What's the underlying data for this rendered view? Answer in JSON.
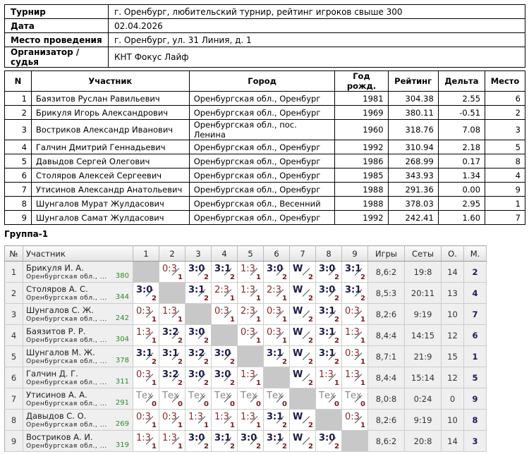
{
  "info": [
    {
      "label": "Турнир",
      "value": "г. Оренбург, любительский турнир, рейтинг игроков свыше 300"
    },
    {
      "label": "Дата",
      "value": "02.04.2026"
    },
    {
      "label": "Место проведения",
      "value": "г. Оренбург, ул. 31 Линия, д. 1"
    },
    {
      "label": "Организатор / судья",
      "value": "КНТ Фокус Лайф"
    }
  ],
  "players": {
    "headers": [
      "N",
      "Участник",
      "Город",
      "Год рожд.",
      "Рейтинг",
      "Дельта",
      "Место"
    ],
    "rows": [
      [
        "1",
        "Баязитов Руслан Равильевич",
        "Оренбургская обл., Оренбург",
        "1981",
        "304.38",
        "2.55",
        "6"
      ],
      [
        "2",
        "Брикуля Игорь Александрович",
        "Оренбургская обл., Оренбург",
        "1969",
        "380.11",
        "-0.51",
        "2"
      ],
      [
        "3",
        "Востриков Александр Иванович",
        "Оренбургская обл., пос. Ленина",
        "1960",
        "318.76",
        "7.08",
        "3"
      ],
      [
        "4",
        "Галчин Дмитрий Геннадьевич",
        "Оренбургская обл., Оренбург",
        "1992",
        "310.94",
        "2.18",
        "5"
      ],
      [
        "5",
        "Давыдов Сергей Олегович",
        "Оренбургская обл., Оренбург",
        "1986",
        "268.99",
        "0.17",
        "8"
      ],
      [
        "6",
        "Столяров Алексей Сергеевич",
        "Оренбургская обл., Оренбург",
        "1985",
        "343.93",
        "1.34",
        "4"
      ],
      [
        "7",
        "Утисинов Александр Анатольевич",
        "Оренбургская обл., Оренбург",
        "1988",
        "291.36",
        "0.00",
        "9"
      ],
      [
        "8",
        "Шунгалов Мурат Жулдасович",
        "Оренбургская обл., Весенний",
        "1988",
        "378.03",
        "2.95",
        "1"
      ],
      [
        "9",
        "Шунгалов Самат Жулдасович",
        "Оренбургская обл., Оренбург",
        "1992",
        "242.41",
        "1.60",
        "7"
      ]
    ]
  },
  "group": {
    "title": "Группа-1",
    "headers": [
      "№",
      "Участник",
      "1",
      "2",
      "3",
      "4",
      "5",
      "6",
      "7",
      "8",
      "9",
      "Игры",
      "Сеты",
      "О.",
      "М."
    ],
    "rows": [
      {
        "n": "1",
        "name": "Брикуля И. А.",
        "region": "Оренбургская обл., ...",
        "rating": "380",
        "cells": [
          null,
          "0:3|1",
          "3:0|2",
          "3:1|2",
          "1:3|1",
          "3:0|2",
          "W|2",
          "3:0|2",
          "3:1|2"
        ],
        "games": "8,6:2",
        "sets": "19:8",
        "points": "14",
        "place": "2"
      },
      {
        "n": "2",
        "name": "Столяров А. С.",
        "region": "Оренбургская обл., ...",
        "rating": "344",
        "cells": [
          "3:0|2",
          null,
          "3:1|2",
          "2:3|1",
          "1:3|1",
          "2:3|1",
          "W|2",
          "3:0|2",
          "3:1|2"
        ],
        "games": "8,5:3",
        "sets": "20:11",
        "points": "13",
        "place": "4"
      },
      {
        "n": "3",
        "name": "Шунгалов С. Ж.",
        "region": "Оренбургская обл., ...",
        "rating": "242",
        "cells": [
          "0:3|1",
          "1:3|1",
          null,
          "0:3|1",
          "2:3|1",
          "0:3|1",
          "W|2",
          "3:1|2",
          "0:3|1"
        ],
        "games": "8,2:6",
        "sets": "9:19",
        "points": "10",
        "place": "7"
      },
      {
        "n": "4",
        "name": "Баязитов Р. Р.",
        "region": "Оренбургская обл., ...",
        "rating": "304",
        "cells": [
          "1:3|1",
          "3:2|2",
          "3:0|2",
          null,
          "0:3|1",
          "0:3|1",
          "W|2",
          "3:1|2",
          "1:3|1"
        ],
        "games": "8,4:4",
        "sets": "14:15",
        "points": "12",
        "place": "6"
      },
      {
        "n": "5",
        "name": "Шунгалов М. Ж.",
        "region": "Оренбургская обл., ...",
        "rating": "378",
        "cells": [
          "3:1|2",
          "3:1|2",
          "3:2|2",
          "3:0|2",
          null,
          "3:1|2",
          "W|2",
          "3:1|2",
          "0:3|1"
        ],
        "games": "8,7:1",
        "sets": "21:9",
        "points": "15",
        "place": "1"
      },
      {
        "n": "6",
        "name": "Галчин Д. Г.",
        "region": "Оренбургская обл., ...",
        "rating": "311",
        "cells": [
          "0:3|1",
          "3:2|2",
          "3:0|2",
          "3:0|2",
          "1:3|1",
          null,
          "W|2",
          "1:3|1",
          "1:3|1"
        ],
        "games": "8,4:4",
        "sets": "15:14",
        "points": "12",
        "place": "5"
      },
      {
        "n": "7",
        "name": "Утисинов А. А.",
        "region": "Оренбургская обл., ...",
        "rating": "291",
        "cells": [
          "Тех|0",
          "Тех|0",
          "Тех|0",
          "Тех|0",
          "Тех|0",
          "Тех|0",
          null,
          "Тех|0",
          "Тех|0"
        ],
        "games": "8,0:8",
        "sets": "0:24",
        "points": "0",
        "place": "9"
      },
      {
        "n": "8",
        "name": "Давыдов С. О.",
        "region": "Оренбургская обл., ...",
        "rating": "269",
        "cells": [
          "0:3|1",
          "0:3|1",
          "1:3|1",
          "1:3|1",
          "1:3|1",
          "3:1|2",
          "W|2",
          null,
          "0:3|1"
        ],
        "games": "8,2:6",
        "sets": "9:19",
        "points": "10",
        "place": "8"
      },
      {
        "n": "9",
        "name": "Востриков А. И.",
        "region": "Оренбургская обл., ...",
        "rating": "319",
        "cells": [
          "1:3|1",
          "1:3|1",
          "3:0|2",
          "3:1|2",
          "3:0|2",
          "3:1|2",
          "W|2",
          "3:0|2",
          null
        ],
        "games": "8,6:2",
        "sets": "20:8",
        "points": "14",
        "place": "3"
      }
    ]
  }
}
